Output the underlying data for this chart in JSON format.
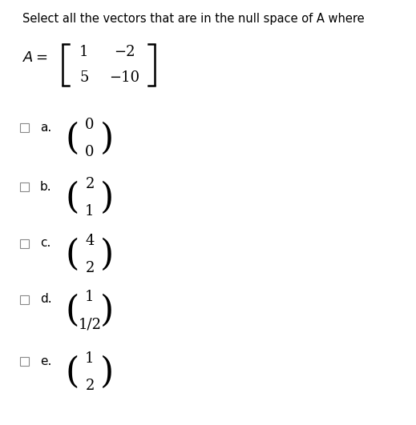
{
  "title": "Select all the vectors that are in the null space of A where",
  "title_fontsize": 10.5,
  "background_color": "#ffffff",
  "matrix_rows": [
    [
      "1",
      "−2"
    ],
    [
      "5",
      "−10"
    ]
  ],
  "options": [
    {
      "label": "a.",
      "vector": [
        "0",
        "0"
      ]
    },
    {
      "label": "b.",
      "vector": [
        "2",
        "1"
      ]
    },
    {
      "label": "c.",
      "vector": [
        "4",
        "2"
      ]
    },
    {
      "label": "d.",
      "vector": [
        "1",
        "1/2"
      ]
    },
    {
      "label": "e.",
      "vector": [
        "1",
        "2"
      ]
    }
  ],
  "text_color": "#000000",
  "serif_font": "DejaVu Serif",
  "sans_font": "DejaVu Sans",
  "fig_width": 5.19,
  "fig_height": 5.31,
  "dpi": 100
}
